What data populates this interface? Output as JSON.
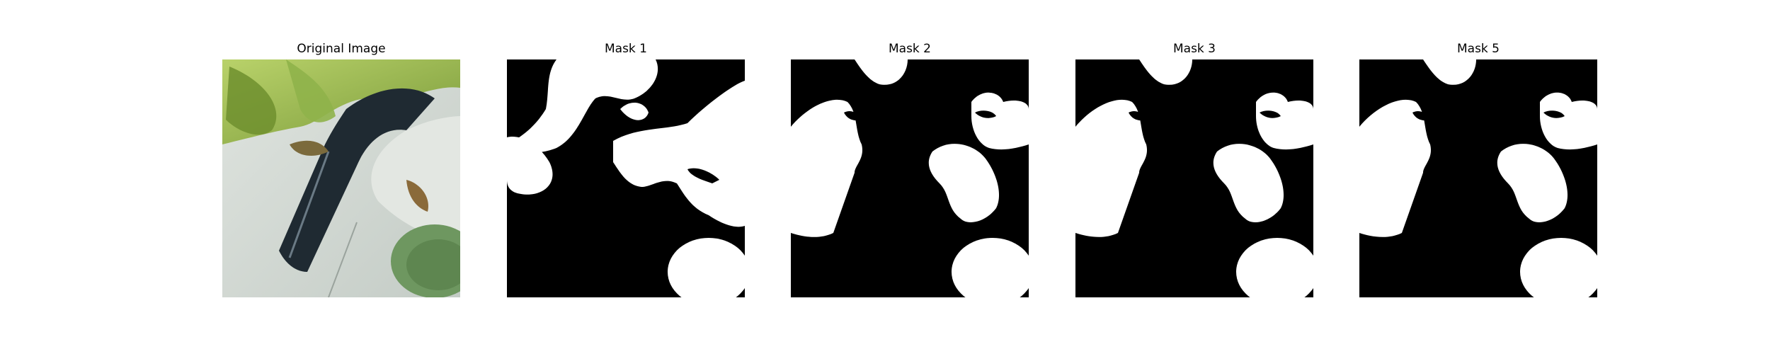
{
  "figure": {
    "panels": [
      {
        "title": "Original Image",
        "kind": "photo"
      },
      {
        "title": "Mask 1",
        "kind": "mask"
      },
      {
        "title": "Mask 2",
        "kind": "mask"
      },
      {
        "title": "Mask 3",
        "kind": "mask"
      },
      {
        "title": "Mask 5",
        "kind": "mask"
      }
    ],
    "colors": {
      "background": "#ffffff",
      "mask_foreground": "#ffffff",
      "mask_background": "#000000",
      "photo_leaf_light": "#a9c55e",
      "photo_leaf_dark": "#5f7f2a",
      "photo_pot_white": "#d8ddd8",
      "photo_pot_stripe": "#1f2a32",
      "photo_seedling": "#6e9760"
    }
  }
}
